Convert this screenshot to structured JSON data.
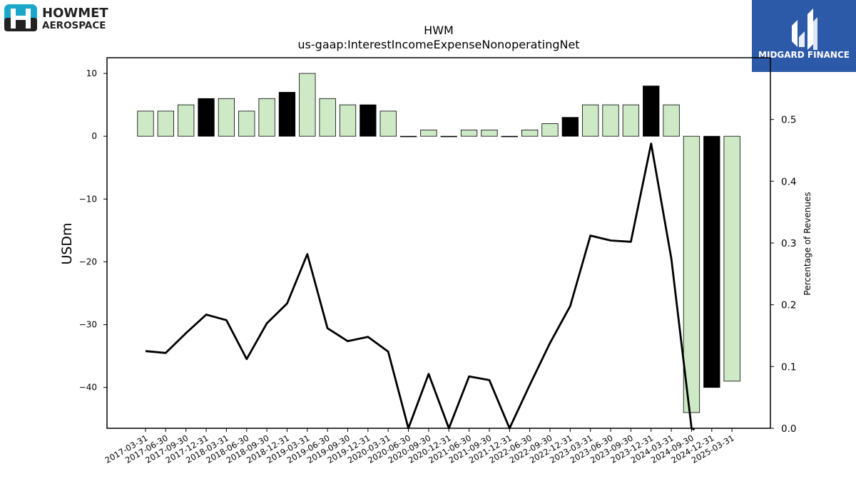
{
  "brand": {
    "left_logo_line1": "HOWMET",
    "left_logo_line2": "AEROSPACE",
    "right_logo_text": "MIDGARD FINANCE",
    "right_logo_color": "#2d5aa8",
    "left_logo_color": "#1ba7c9"
  },
  "chart_data": {
    "type": "bar",
    "title": "HWM",
    "subtitle": "us-gaap:InterestIncomeExpenseNonoperatingNet",
    "ylabel": "USDm",
    "y2label": "Percentage of Revenues",
    "ylim": [
      -46.5,
      12.5
    ],
    "y2lim": [
      0.0,
      0.6
    ],
    "yticks": [
      10,
      0,
      -10,
      -20,
      -30,
      -40
    ],
    "y2ticks": [
      0.5,
      0.4,
      0.3,
      0.2,
      0.1,
      0.0
    ],
    "ytick_labels": [
      "10",
      "0",
      "−10",
      "−20",
      "−30",
      "−40"
    ],
    "y2tick_labels": [
      "0.5",
      "0.4",
      "0.3",
      "0.2",
      "0.1",
      "0.0"
    ],
    "grid": false,
    "colors": {
      "quarter_bar": "#cde9c6",
      "year_end_bar": "#000000",
      "line": "#000000"
    },
    "categories": [
      "2017-03-31",
      "2017-06-30",
      "2017-09-30",
      "2017-12-31",
      "2018-03-31",
      "2018-06-30",
      "2018-09-30",
      "2018-12-31",
      "2019-03-31",
      "2019-06-30",
      "2019-09-30",
      "2019-12-31",
      "2020-03-31",
      "2020-06-30",
      "2020-09-30",
      "2020-12-31",
      "2021-06-30",
      "2021-09-30",
      "2021-12-31",
      "2022-06-30",
      "2022-09-30",
      "2022-12-31",
      "2023-03-31",
      "2023-06-30",
      "2023-09-30",
      "2023-12-31",
      "2024-03-31",
      "2024-09-30",
      "2024-12-31",
      "2025-03-31"
    ],
    "series": [
      {
        "kind": "bar",
        "values": [
          4,
          4,
          5,
          6,
          6,
          4,
          6,
          7,
          10,
          6,
          5,
          5,
          4,
          0,
          1,
          0,
          1,
          1,
          0,
          1,
          2,
          3,
          5,
          5,
          5,
          8,
          5,
          -44,
          -40,
          -39
        ],
        "highlight": [
          false,
          false,
          false,
          true,
          false,
          false,
          false,
          true,
          false,
          false,
          false,
          true,
          false,
          false,
          false,
          false,
          false,
          false,
          false,
          false,
          false,
          true,
          false,
          false,
          false,
          true,
          false,
          false,
          true,
          false
        ]
      },
      {
        "kind": "line",
        "axis": "right",
        "values": [
          0.125,
          0.122,
          0.154,
          0.184,
          0.175,
          0.112,
          0.17,
          0.202,
          0.282,
          0.162,
          0.141,
          0.148,
          0.124,
          0.0,
          0.088,
          0.0,
          0.084,
          0.078,
          0.0,
          0.07,
          0.138,
          0.198,
          0.312,
          0.304,
          0.302,
          0.461,
          0.275,
          0.0,
          null,
          null
        ]
      }
    ]
  }
}
